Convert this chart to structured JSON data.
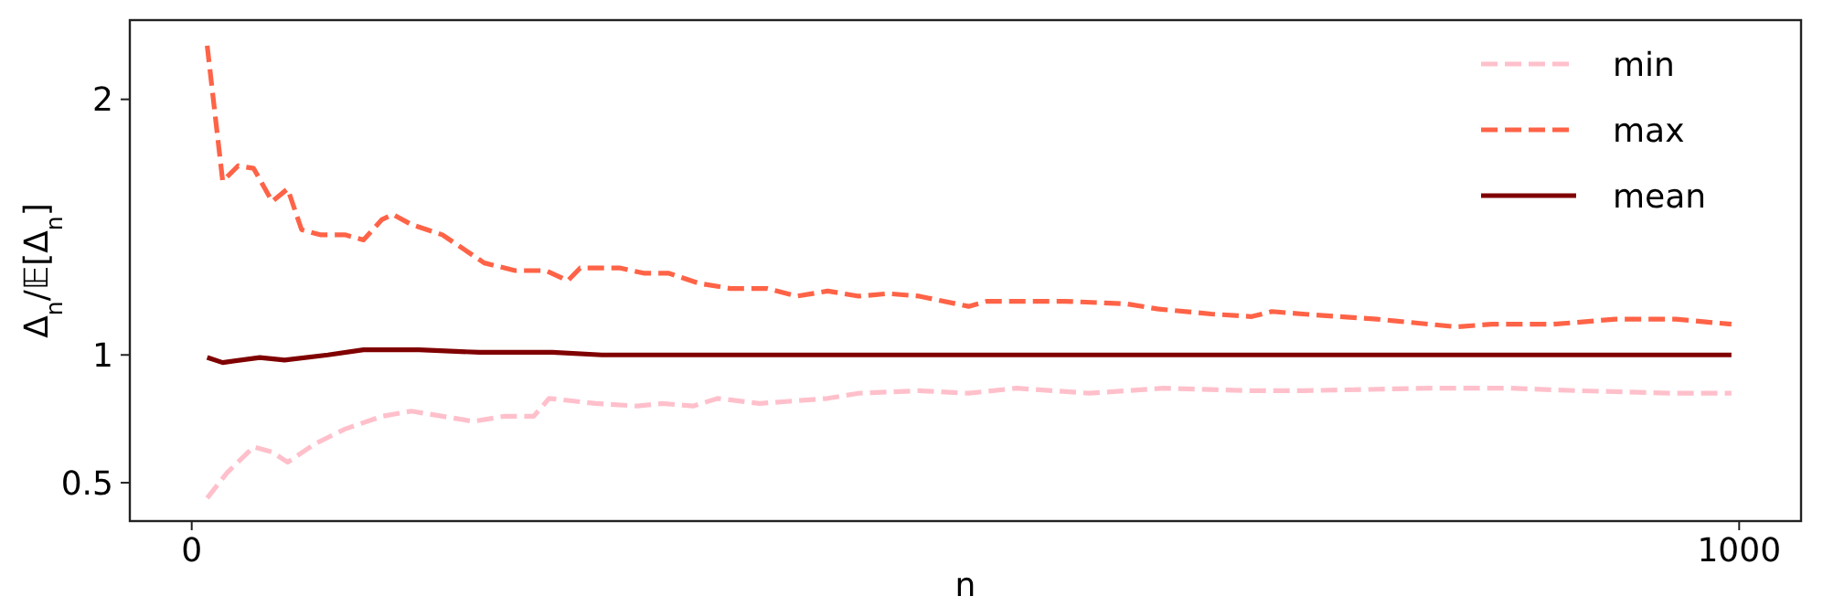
{
  "chart_data": {
    "type": "line",
    "xlabel": "n",
    "ylabel": "Δ$_{n}$/𝔼[Δ$_{n}$]",
    "xlim": [
      -40,
      1040
    ],
    "xticks": [
      0,
      1000
    ],
    "ylim": [
      0.35,
      2.31
    ],
    "yticks": [
      0.5,
      1,
      2
    ],
    "legend": "top right",
    "grid": false,
    "series": [
      {
        "name": "min",
        "color": "#ffc0cb",
        "line_style": "dashed",
        "x": [
          10,
          23,
          40,
          52,
          62,
          79,
          99,
          123,
          142,
          162,
          182,
          202,
          221,
          231,
          261,
          288,
          304,
          324,
          340,
          367,
          411,
          431,
          470,
          502,
          533,
          580,
          628,
          683,
          718,
          801,
          852,
          896,
          959,
          995
        ],
        "values": [
          0.44,
          0.54,
          0.64,
          0.62,
          0.58,
          0.65,
          0.71,
          0.76,
          0.78,
          0.76,
          0.74,
          0.76,
          0.76,
          0.83,
          0.81,
          0.8,
          0.81,
          0.8,
          0.83,
          0.81,
          0.83,
          0.85,
          0.86,
          0.85,
          0.87,
          0.85,
          0.87,
          0.86,
          0.86,
          0.87,
          0.87,
          0.86,
          0.85,
          0.85
        ]
      },
      {
        "name": "max",
        "color": "#ff6347",
        "line_style": "dashed",
        "x": [
          10,
          20,
          30,
          40,
          52,
          62,
          71,
          83,
          99,
          111,
          123,
          130,
          142,
          162,
          189,
          209,
          229,
          243,
          251,
          277,
          292,
          308,
          328,
          348,
          372,
          391,
          411,
          431,
          450,
          470,
          502,
          514,
          564,
          604,
          624,
          659,
          685,
          698,
          718,
          766,
          817,
          840,
          880,
          920,
          959,
          995
        ],
        "values": [
          2.21,
          1.68,
          1.74,
          1.73,
          1.6,
          1.65,
          1.49,
          1.47,
          1.47,
          1.45,
          1.53,
          1.55,
          1.51,
          1.47,
          1.36,
          1.33,
          1.33,
          1.29,
          1.34,
          1.34,
          1.32,
          1.32,
          1.28,
          1.26,
          1.26,
          1.23,
          1.25,
          1.23,
          1.24,
          1.23,
          1.19,
          1.21,
          1.21,
          1.2,
          1.18,
          1.16,
          1.15,
          1.17,
          1.16,
          1.14,
          1.11,
          1.12,
          1.12,
          1.14,
          1.14,
          1.12
        ]
      },
      {
        "name": "mean",
        "color": "#800000",
        "line_style": "solid",
        "x": [
          10,
          20,
          44,
          60,
          88,
          111,
          147,
          186,
          233,
          265,
          400,
          600,
          800,
          995
        ],
        "values": [
          0.99,
          0.97,
          0.99,
          0.98,
          1.0,
          1.02,
          1.02,
          1.01,
          1.01,
          1.0,
          1.0,
          1.0,
          1.0,
          1.0
        ]
      }
    ]
  }
}
